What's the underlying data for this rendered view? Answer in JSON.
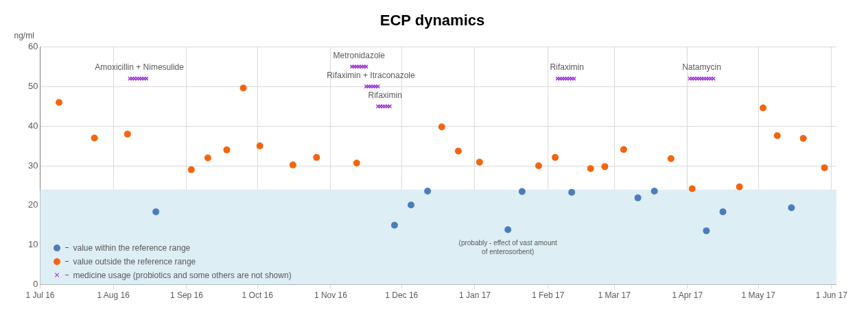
{
  "chart_data": {
    "type": "scatter",
    "title": "ECP dynamics",
    "ylabel": "ng/ml",
    "xlim": [
      "2016-07-01",
      "2017-06-03"
    ],
    "xticks": [
      {
        "value": "2016-07-01",
        "label": "1 Jul 16"
      },
      {
        "value": "2016-08-01",
        "label": "1 Aug 16"
      },
      {
        "value": "2016-09-01",
        "label": "1 Sep 16"
      },
      {
        "value": "2016-10-01",
        "label": "1 Oct 16"
      },
      {
        "value": "2016-11-01",
        "label": "1 Nov 16"
      },
      {
        "value": "2016-12-01",
        "label": "1 Dec 16"
      },
      {
        "value": "2017-01-01",
        "label": "1 Jan 17"
      },
      {
        "value": "2017-02-01",
        "label": "1 Feb 17"
      },
      {
        "value": "2017-03-01",
        "label": "1 Mar 17"
      },
      {
        "value": "2017-04-01",
        "label": "1 Apr 17"
      },
      {
        "value": "2017-05-01",
        "label": "1 May 17"
      },
      {
        "value": "2017-06-01",
        "label": "1 Jun 17"
      }
    ],
    "ylim": [
      0,
      60
    ],
    "yticks": [
      0,
      10,
      20,
      30,
      40,
      50,
      60
    ],
    "grid": true,
    "legend": "bottom left",
    "bands": [
      {
        "axis": "y",
        "from": 0,
        "to": 24,
        "color": "#deeef5"
      }
    ],
    "series": [
      {
        "name": "value within the reference range",
        "color": "#4a7ebb",
        "marker": "circle",
        "x": [
          "2016-08-19",
          "2016-11-28",
          "2016-12-05",
          "2016-12-12",
          "2017-01-15",
          "2017-01-21",
          "2017-02-11",
          "2017-03-11",
          "2017-03-18",
          "2017-04-09",
          "2017-04-16",
          "2017-05-15"
        ],
        "values": [
          18.4,
          15,
          20.1,
          23.6,
          13.9,
          23.5,
          23.3,
          21.9,
          23.6,
          13.6,
          18.4,
          19.4
        ]
      },
      {
        "name": "value outside the reference range",
        "color": "#f4650f",
        "marker": "circle",
        "x": [
          "2016-07-09",
          "2016-07-24",
          "2016-08-07",
          "2016-09-03",
          "2016-09-10",
          "2016-09-18",
          "2016-09-25",
          "2016-10-02",
          "2016-10-16",
          "2016-10-26",
          "2016-11-12",
          "2016-12-18",
          "2016-12-25",
          "2017-01-03",
          "2017-01-28",
          "2017-02-04",
          "2017-02-19",
          "2017-02-25",
          "2017-03-05",
          "2017-03-25",
          "2017-04-03",
          "2017-04-23",
          "2017-05-03",
          "2017-05-09",
          "2017-05-20",
          "2017-05-29"
        ],
        "values": [
          46,
          37,
          38,
          29,
          32,
          34,
          49.6,
          35,
          30.2,
          32.1,
          30.7,
          39.8,
          33.7,
          30.9,
          30,
          32.1,
          29.3,
          29.8,
          34.1,
          31.8,
          24.2,
          24.7,
          44.6,
          37.6,
          36.9,
          29.5
        ]
      },
      {
        "name": "medicine usage (probiotics and some others are not shown)",
        "color": "#9b30d9",
        "marker": "cross",
        "x": [
          "2016-08-08",
          "2016-08-09",
          "2016-08-10",
          "2016-08-11",
          "2016-08-12",
          "2016-08-13",
          "2016-08-14",
          "2016-08-15",
          "2016-11-10",
          "2016-11-11",
          "2016-11-12",
          "2016-11-13",
          "2016-11-14",
          "2016-11-15",
          "2016-11-16",
          "2016-11-16",
          "2016-11-17",
          "2016-11-18",
          "2016-11-19",
          "2016-11-20",
          "2016-11-21",
          "2016-11-21",
          "2016-11-22",
          "2016-11-23",
          "2016-11-24",
          "2016-11-25",
          "2016-11-26",
          "2017-02-05",
          "2017-02-06",
          "2017-02-07",
          "2017-02-08",
          "2017-02-09",
          "2017-02-10",
          "2017-02-11",
          "2017-02-12",
          "2017-04-02",
          "2017-04-03",
          "2017-04-04",
          "2017-04-05",
          "2017-04-06",
          "2017-04-07",
          "2017-04-08",
          "2017-04-09",
          "2017-04-10",
          "2017-04-11",
          "2017-04-12"
        ],
        "values": [
          52,
          52,
          52,
          52,
          52,
          52,
          52,
          52,
          55,
          55,
          55,
          55,
          55,
          55,
          55,
          50,
          50,
          50,
          50,
          50,
          50,
          45,
          45,
          45,
          45,
          45,
          45,
          52,
          52,
          52,
          52,
          52,
          52,
          52,
          52,
          52,
          52,
          52,
          52,
          52,
          52,
          52,
          52,
          52,
          52,
          52
        ]
      }
    ],
    "annotations": [
      {
        "text": "Amoxicillin + Nimesulide",
        "x": "2016-08-12",
        "y": 52
      },
      {
        "text": "Metronidazole",
        "x": "2016-11-13",
        "y": 55
      },
      {
        "text": "Rifaximin + Itraconazole",
        "x": "2016-11-18",
        "y": 50
      },
      {
        "text": "Rifaximin",
        "x": "2016-11-24",
        "y": 45
      },
      {
        "text": "Rifaximin",
        "x": "2017-02-09",
        "y": 52
      },
      {
        "text": "Natamycin",
        "x": "2017-04-07",
        "y": 52
      },
      {
        "text": "(probably - effect of vast amount of enterosorbent)",
        "x": "2017-01-15",
        "y": 13.9
      }
    ]
  }
}
